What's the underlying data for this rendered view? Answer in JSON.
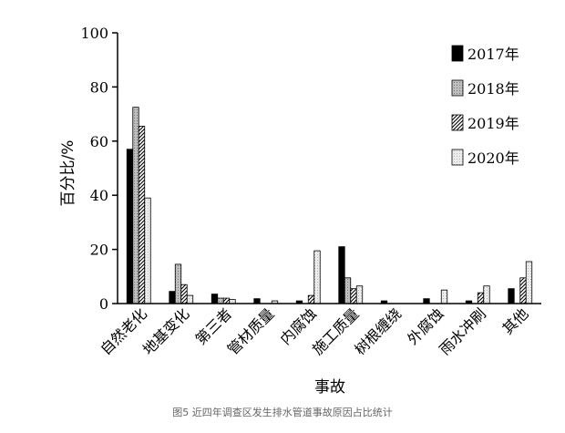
{
  "chart_data": {
    "type": "bar",
    "categories": [
      "自然老化",
      "地基变化",
      "第三者",
      "管材质量",
      "内腐蚀",
      "施工质量",
      "树根缠绕",
      "外腐蚀",
      "雨水冲刷",
      "其他"
    ],
    "series": [
      {
        "name": "2017年",
        "values": [
          57,
          4.5,
          3.5,
          1.8,
          1,
          21,
          1,
          1.8,
          1,
          5.5
        ]
      },
      {
        "name": "2018年",
        "values": [
          72.5,
          14.5,
          2,
          0,
          0,
          9.5,
          0,
          0,
          0,
          0
        ]
      },
      {
        "name": "2019年",
        "values": [
          65.5,
          7,
          2,
          0,
          3,
          5.5,
          0,
          0,
          4,
          9.5
        ]
      },
      {
        "name": "2020年",
        "values": [
          39,
          3,
          1.5,
          1,
          19.5,
          6.5,
          0,
          5,
          6.5,
          15.5
        ]
      }
    ],
    "xlabel": "事故",
    "ylabel": "百分比/%",
    "ylim": [
      0,
      100
    ],
    "yticks": [
      "0",
      "20",
      "40",
      "60",
      "80",
      "100"
    ],
    "legend_position": "top-right",
    "grid": false,
    "caption": "图5 近四年调查区发生排水管道事故原因占比统计",
    "series_fills": [
      "solid-black",
      "gray-stipple",
      "diagonal-hatch",
      "light-gray-stipple"
    ]
  }
}
